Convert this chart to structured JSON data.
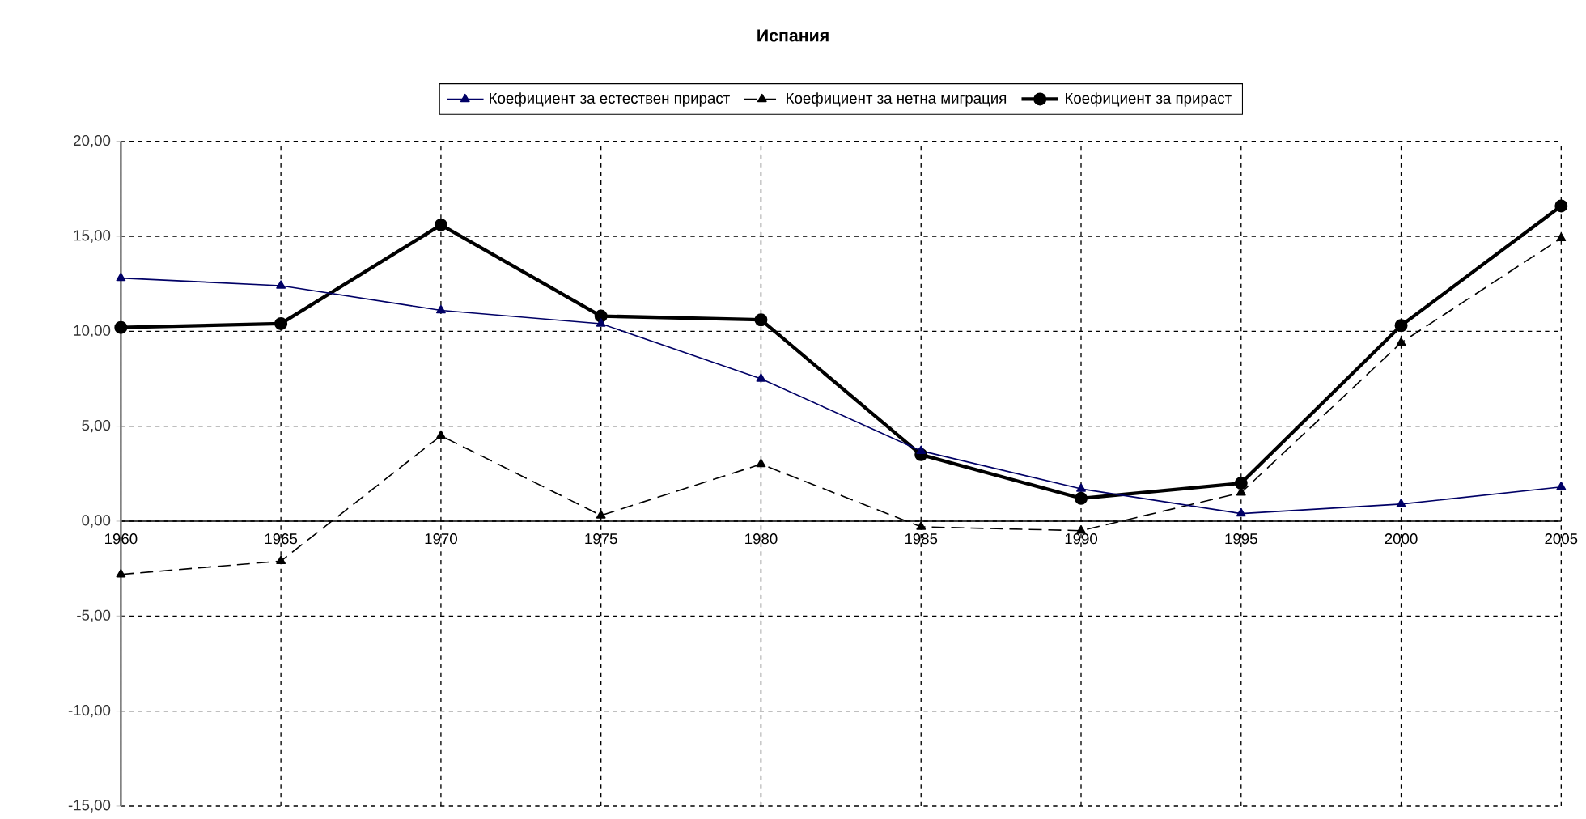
{
  "chart_data": {
    "type": "line",
    "title": "Испания",
    "x": [
      1960,
      1965,
      1970,
      1975,
      1980,
      1985,
      1990,
      1995,
      2000,
      2005
    ],
    "series": [
      {
        "name": "Коефициент за естествен прираст",
        "color": "#000066",
        "marker": "triangle",
        "line_style": "solid",
        "values": [
          12.8,
          12.4,
          11.1,
          10.4,
          7.5,
          3.7,
          1.7,
          0.4,
          0.9,
          1.8
        ]
      },
      {
        "name": "Коефициент за нетна миграция",
        "color": "#000000",
        "marker": "triangle",
        "line_style": "dashed",
        "values": [
          -2.8,
          -2.1,
          4.5,
          0.3,
          3.0,
          -0.3,
          -0.5,
          1.5,
          9.4,
          14.9
        ]
      },
      {
        "name": "Коефициент за прираст",
        "color": "#000000",
        "marker": "circle",
        "line_style": "solid",
        "values": [
          10.2,
          10.4,
          15.6,
          10.8,
          10.6,
          3.5,
          1.2,
          2.0,
          10.3,
          16.6
        ]
      }
    ],
    "xlim": [
      1960,
      2005
    ],
    "xticks": [
      1960,
      1965,
      1970,
      1975,
      1980,
      1985,
      1990,
      1995,
      2000,
      2005
    ],
    "ylim": [
      -15,
      20
    ],
    "yticks": [
      {
        "value": -15,
        "label": "-15,00"
      },
      {
        "value": -10,
        "label": "-10,00"
      },
      {
        "value": -5,
        "label": "-5,00"
      },
      {
        "value": 0,
        "label": "0,00"
      },
      {
        "value": 5,
        "label": "5,00"
      },
      {
        "value": 10,
        "label": "10,00"
      },
      {
        "value": 15,
        "label": "15,00"
      },
      {
        "value": 20,
        "label": "20,00"
      }
    ],
    "grid": true,
    "legend": "top"
  }
}
